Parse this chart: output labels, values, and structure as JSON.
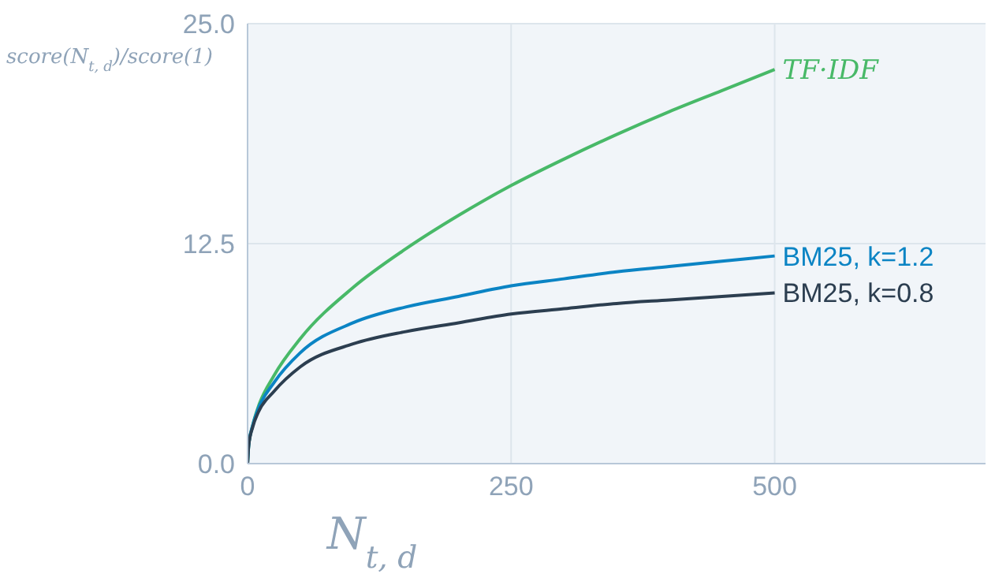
{
  "chart_data": {
    "type": "line",
    "xlabel": "N$_{t, d}$",
    "ylabel": "score(N$_{t, d}$)/score(1)",
    "xlim": [
      0,
      700
    ],
    "xticks": [
      0,
      250,
      500
    ],
    "ylim": [
      0,
      25
    ],
    "yticks": [
      {
        "value": 0,
        "label": "0.0"
      },
      {
        "value": 12.5,
        "label": "12.5"
      },
      {
        "value": 25,
        "label": "25.0"
      }
    ],
    "grid": true,
    "marker": "none",
    "line_style": "solid",
    "series": [
      {
        "name": "TF·IDF",
        "color": "#48b968",
        "x": [
          0,
          1,
          5,
          10,
          25,
          50,
          100,
          150,
          200,
          250,
          300,
          350,
          400,
          450,
          500
        ],
        "values": [
          0,
          1,
          2.2,
          3.2,
          5,
          7.1,
          10,
          12.2,
          14.1,
          15.8,
          17.3,
          18.7,
          20,
          21.2,
          22.4
        ]
      },
      {
        "name": "BM25, k=1.2",
        "color": "#0b84c4",
        "x": [
          0,
          1,
          5,
          10,
          25,
          50,
          100,
          150,
          200,
          250,
          300,
          350,
          400,
          450,
          500
        ],
        "values": [
          0,
          1,
          2.2,
          3.1,
          4.6,
          6.3,
          8,
          8.9,
          9.5,
          10.1,
          10.5,
          10.9,
          11.2,
          11.5,
          11.8
        ]
      },
      {
        "name": "BM25, k=0.8",
        "color": "#2c3e50",
        "x": [
          0,
          1,
          5,
          10,
          25,
          50,
          100,
          150,
          200,
          250,
          300,
          350,
          400,
          450,
          500
        ],
        "values": [
          0,
          1,
          2.1,
          2.9,
          4.1,
          5.5,
          6.8,
          7.5,
          8,
          8.5,
          8.8,
          9.1,
          9.3,
          9.5,
          9.7
        ]
      }
    ]
  }
}
